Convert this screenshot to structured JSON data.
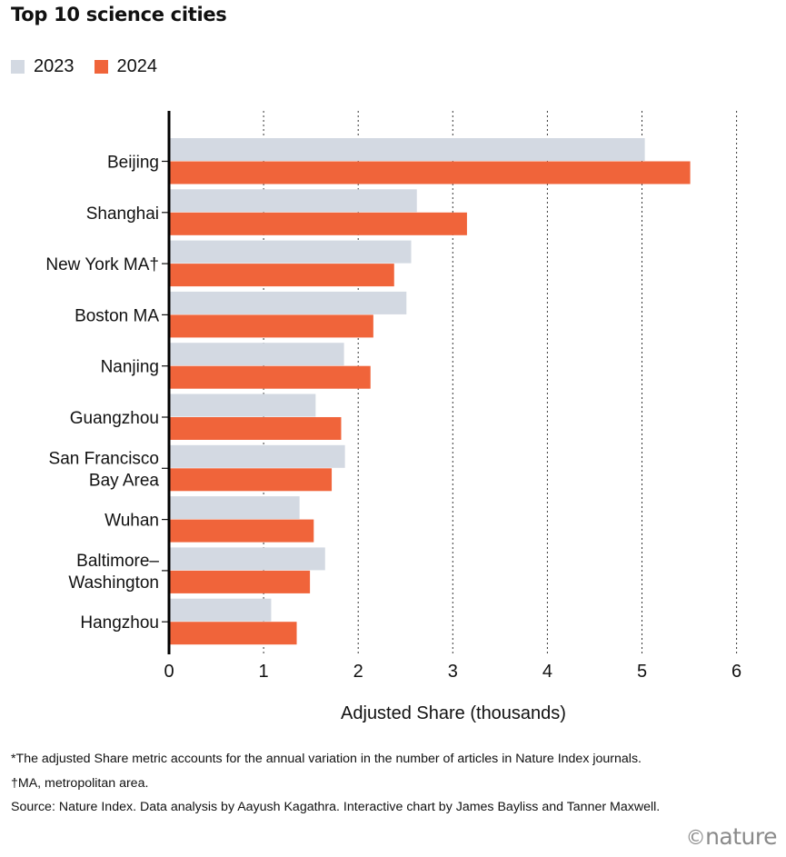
{
  "chart_data": {
    "type": "bar",
    "orientation": "horizontal",
    "title": "Top 10 science cities",
    "xlabel": "Adjusted Share (thousands)",
    "ylabel": "",
    "xlim": [
      0,
      6
    ],
    "x_ticks": [
      0,
      1,
      2,
      3,
      4,
      5,
      6
    ],
    "grid": "vertical dotted",
    "legend": "top-left",
    "categories": [
      [
        "Beijing"
      ],
      [
        "Shanghai"
      ],
      [
        "New York MA†"
      ],
      [
        "Boston MA"
      ],
      [
        "Nanjing"
      ],
      [
        "Guangzhou"
      ],
      [
        "San Francisco",
        "Bay Area"
      ],
      [
        "Wuhan"
      ],
      [
        "Baltimore–",
        "Washington"
      ],
      [
        "Hangzhou"
      ]
    ],
    "series": [
      {
        "name": "2023",
        "color": "#d3d9e2",
        "values": [
          5.03,
          2.62,
          2.56,
          2.51,
          1.85,
          1.55,
          1.86,
          1.38,
          1.65,
          1.08
        ]
      },
      {
        "name": "2024",
        "color": "#f0643a",
        "values": [
          5.51,
          3.15,
          2.38,
          2.16,
          2.13,
          1.82,
          1.72,
          1.53,
          1.49,
          1.35
        ]
      }
    ]
  },
  "notes": {
    "footnote1": "*The adjusted Share metric accounts for the annual variation in the number of articles in Nature Index journals.",
    "footnote2": "†MA, metropolitan area.",
    "source": "Source: Nature Index. Data analysis by Aayush Kagathra. Interactive chart by James Bayliss and Tanner Maxwell."
  },
  "branding": {
    "symbol": "©",
    "name": "nature"
  }
}
